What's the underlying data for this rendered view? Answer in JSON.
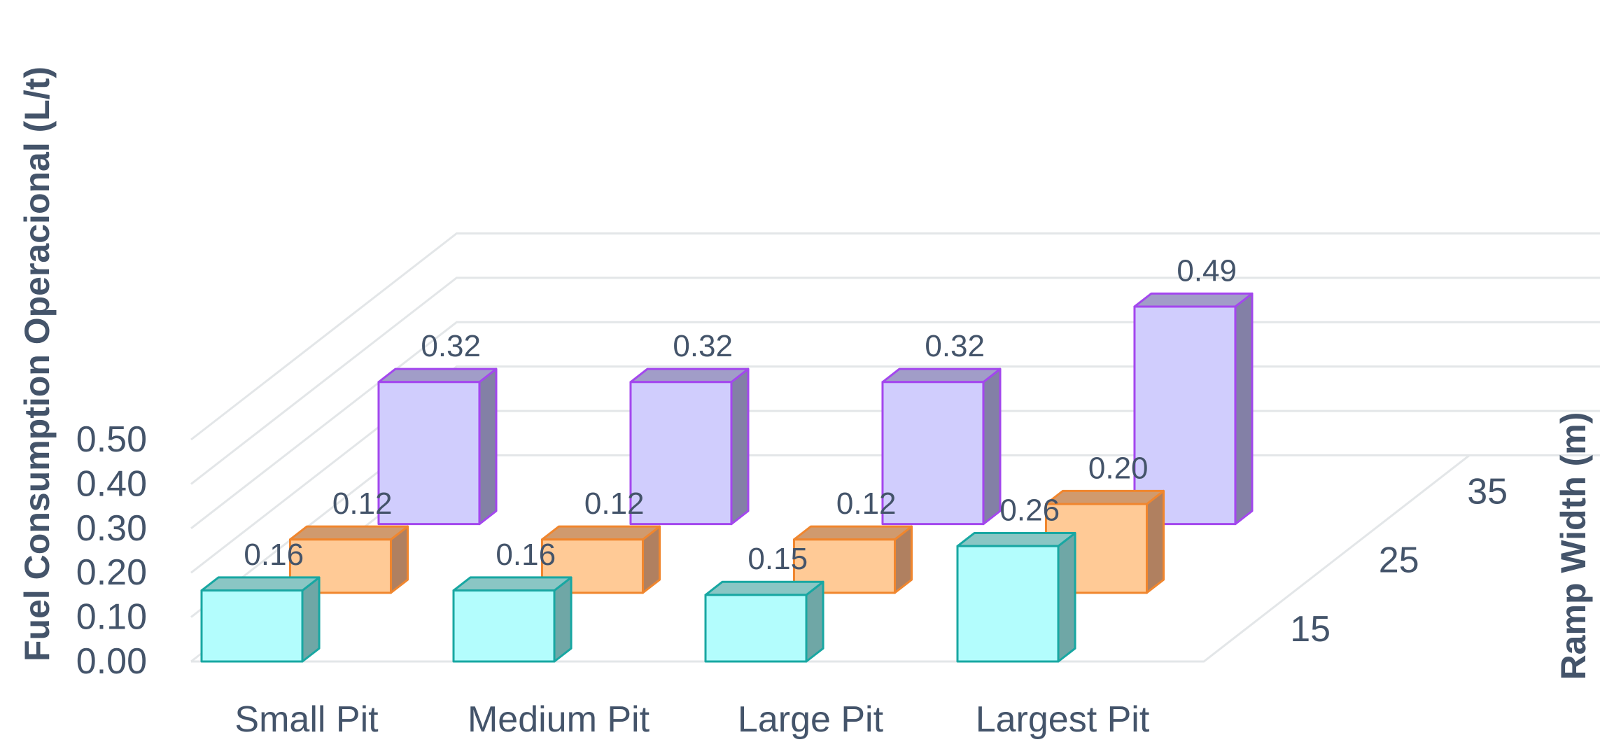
{
  "chart_data": {
    "type": "bar",
    "subtype": "3d-column",
    "categories": [
      "Small Pit",
      "Medium Pit",
      "Large Pit",
      "Largest Pit"
    ],
    "ylabel": "Fuel Consumption Operacional (L/t)",
    "zlabel": "Ramp Width (m)",
    "ylim": [
      0,
      0.5
    ],
    "yticks": [
      "0.00",
      "0.10",
      "0.20",
      "0.30",
      "0.40",
      "0.50"
    ],
    "grid": true,
    "series": [
      {
        "name": "15",
        "values": [
          0.16,
          0.16,
          0.15,
          0.26
        ],
        "labels": [
          "0.16",
          "0.16",
          "0.15",
          "0.26"
        ],
        "colors": {
          "front": "#b3fdfd",
          "side": "#6fa7a6",
          "top": "#8ac6c4",
          "edge": "#18a7a2"
        }
      },
      {
        "name": "25",
        "values": [
          0.12,
          0.12,
          0.12,
          0.2
        ],
        "labels": [
          "0.12",
          "0.12",
          "0.12",
          "0.20"
        ],
        "colors": {
          "front": "#ffca96",
          "side": "#b08060",
          "top": "#d09a6e",
          "edge": "#f0862e"
        }
      },
      {
        "name": "35",
        "values": [
          0.32,
          0.32,
          0.32,
          0.49
        ],
        "labels": [
          "0.32",
          "0.32",
          "0.32",
          "0.49"
        ],
        "colors": {
          "front": "#d0cdfd",
          "side": "#8380a6",
          "top": "#a19dc8",
          "edge": "#a347ee"
        }
      }
    ]
  }
}
